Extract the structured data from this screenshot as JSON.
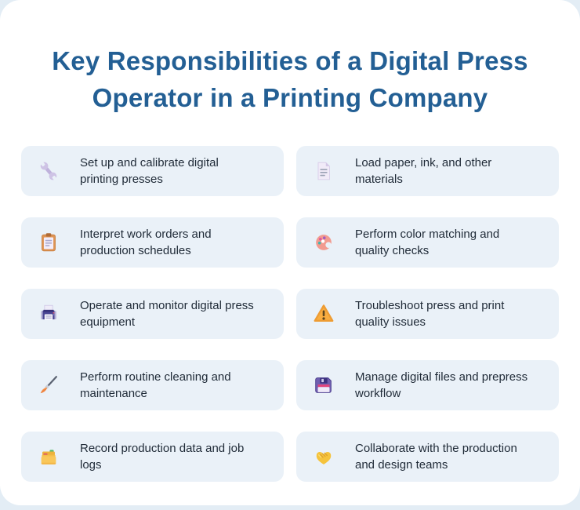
{
  "title": {
    "line1": "Key Responsibilities of a Digital Press",
    "line2": "Operator in a Printing Company"
  },
  "colors": {
    "page_background": "#E3EDF5",
    "panel_background": "#FFFFFF",
    "card_background": "#EAF1F8",
    "title_text": "#235F94",
    "card_text": "#1F2A37"
  },
  "cards": [
    {
      "icon": "wrench-icon",
      "label": "Set up and calibrate digital printing presses",
      "lines": [
        "Set up and calibrate digital",
        "printing presses"
      ]
    },
    {
      "icon": "document-icon",
      "label": "Load paper, ink, and other materials",
      "lines": [
        "Load paper, ink, and other",
        "materials"
      ]
    },
    {
      "icon": "clipboard-icon",
      "label": "Interpret work orders and production schedules",
      "lines": [
        "Interpret work orders and",
        "production schedules"
      ]
    },
    {
      "icon": "palette-icon",
      "label": "Perform color matching and quality checks",
      "lines": [
        "Perform color matching and",
        "quality checks"
      ]
    },
    {
      "icon": "printer-icon",
      "label": "Operate and monitor digital press equipment",
      "lines": [
        "Operate and monitor digital press",
        "equipment"
      ]
    },
    {
      "icon": "warning-icon",
      "label": "Troubleshoot press and print quality issues",
      "lines": [
        "Troubleshoot press and print",
        "quality issues"
      ]
    },
    {
      "icon": "paintbrush-icon",
      "label": "Perform routine cleaning and maintenance",
      "lines": [
        "Perform routine cleaning and",
        "maintenance"
      ]
    },
    {
      "icon": "floppy-disk-icon",
      "label": "Manage digital files and prepress workflow",
      "lines": [
        "Manage digital files and prepress",
        "workflow"
      ]
    },
    {
      "icon": "card-index-icon",
      "label": "Record production data and job logs",
      "lines": [
        "Record production data and job",
        "logs"
      ]
    },
    {
      "icon": "handshake-icon",
      "label": "Collaborate with the production and design teams",
      "lines": [
        "Collaborate with the production",
        "and design teams"
      ]
    }
  ]
}
